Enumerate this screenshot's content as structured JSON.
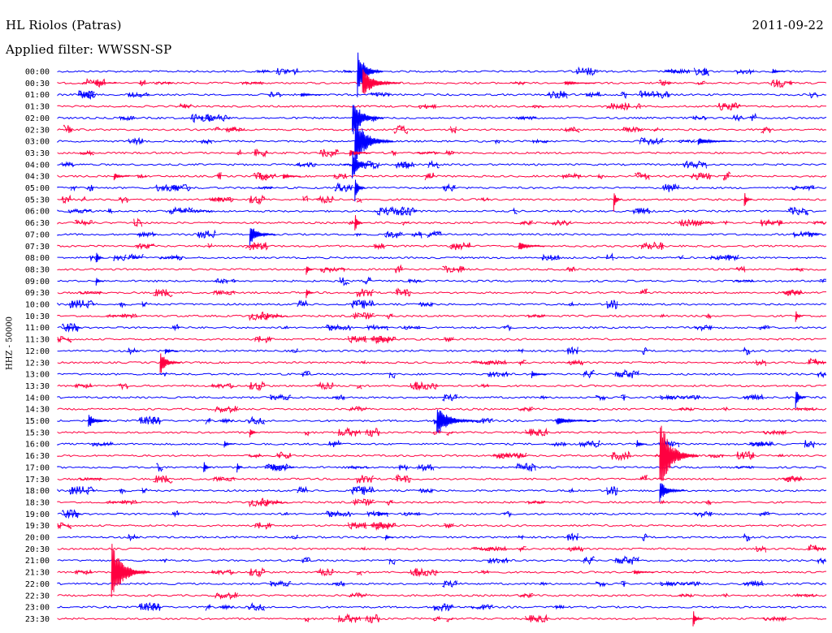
{
  "header": {
    "station": "HL Riolos (Patras)",
    "date": "2011-09-22",
    "filter": "Applied filter: WWSSN-SP"
  },
  "y_axis_label": "HHZ - 50000",
  "colors": {
    "even_row": "#0000ff",
    "odd_row": "#ff0040",
    "text": "#000000"
  },
  "chart_data": {
    "type": "line",
    "title": "HL Riolos (Patras)",
    "subtitle": "Applied filter: WWSSN-SP",
    "ylabel": "HHZ - 50000",
    "rows": [
      "00:00",
      "00:30",
      "01:00",
      "01:30",
      "02:00",
      "02:30",
      "03:00",
      "03:30",
      "04:00",
      "04:30",
      "05:00",
      "05:30",
      "06:00",
      "06:30",
      "07:00",
      "07:30",
      "08:00",
      "08:30",
      "09:00",
      "09:30",
      "10:00",
      "10:30",
      "11:00",
      "11:30",
      "12:00",
      "12:30",
      "13:00",
      "13:30",
      "14:00",
      "14:30",
      "15:00",
      "15:30",
      "16:00",
      "16:30",
      "17:00",
      "17:30",
      "18:00",
      "18:30",
      "19:00",
      "19:30",
      "20:00",
      "20:30",
      "21:00",
      "21:30",
      "22:00",
      "22:30",
      "23:00",
      "23:30"
    ],
    "row_minutes": 30,
    "color_cycle": [
      "blue",
      "red"
    ],
    "events": [
      {
        "row": 0,
        "minute": 11.7,
        "amplitude": 32,
        "duration_min": 1.0
      },
      {
        "row": 0,
        "minute": 27.9,
        "amplitude": 4,
        "duration_min": 0.5
      },
      {
        "row": 1,
        "minute": 11.9,
        "amplitude": 18,
        "duration_min": 1.5
      },
      {
        "row": 1,
        "minute": 1.5,
        "amplitude": 2,
        "duration_min": 0.8
      },
      {
        "row": 1,
        "minute": 19.8,
        "amplitude": 3,
        "duration_min": 1.2
      },
      {
        "row": 2,
        "minute": 9.5,
        "amplitude": 3,
        "duration_min": 0.8
      },
      {
        "row": 4,
        "minute": 11.5,
        "amplitude": 28,
        "duration_min": 1.2
      },
      {
        "row": 6,
        "minute": 11.6,
        "amplitude": 34,
        "duration_min": 1.5
      },
      {
        "row": 6,
        "minute": 25.0,
        "amplitude": 5,
        "duration_min": 1.4
      },
      {
        "row": 7,
        "minute": 11.4,
        "amplitude": 6,
        "duration_min": 0.8
      },
      {
        "row": 8,
        "minute": 11.5,
        "amplitude": 20,
        "duration_min": 0.8
      },
      {
        "row": 9,
        "minute": 2.2,
        "amplitude": 5,
        "duration_min": 0.6
      },
      {
        "row": 9,
        "minute": 8.8,
        "amplitude": 4,
        "duration_min": 0.7
      },
      {
        "row": 10,
        "minute": 11.6,
        "amplitude": 20,
        "duration_min": 0.4
      },
      {
        "row": 11,
        "minute": 21.7,
        "amplitude": 16,
        "duration_min": 0.3
      },
      {
        "row": 11,
        "minute": 26.8,
        "amplitude": 12,
        "duration_min": 0.3
      },
      {
        "row": 13,
        "minute": 11.6,
        "amplitude": 14,
        "duration_min": 0.3
      },
      {
        "row": 14,
        "minute": 7.5,
        "amplitude": 14,
        "duration_min": 1.0
      },
      {
        "row": 15,
        "minute": 18.0,
        "amplitude": 6,
        "duration_min": 1.0
      },
      {
        "row": 16,
        "minute": 1.5,
        "amplitude": 10,
        "duration_min": 0.3
      },
      {
        "row": 17,
        "minute": 9.7,
        "amplitude": 8,
        "duration_min": 0.3
      },
      {
        "row": 18,
        "minute": 1.5,
        "amplitude": 6,
        "duration_min": 0.3
      },
      {
        "row": 19,
        "minute": 9.7,
        "amplitude": 8,
        "duration_min": 0.3
      },
      {
        "row": 21,
        "minute": 28.8,
        "amplitude": 10,
        "duration_min": 0.3
      },
      {
        "row": 24,
        "minute": 4.2,
        "amplitude": 4,
        "duration_min": 0.5
      },
      {
        "row": 25,
        "minute": 4.0,
        "amplitude": 16,
        "duration_min": 0.8
      },
      {
        "row": 26,
        "minute": 18.5,
        "amplitude": 5,
        "duration_min": 0.6
      },
      {
        "row": 28,
        "minute": 28.8,
        "amplitude": 14,
        "duration_min": 0.4
      },
      {
        "row": 30,
        "minute": 1.2,
        "amplitude": 10,
        "duration_min": 0.8
      },
      {
        "row": 30,
        "minute": 14.8,
        "amplitude": 20,
        "duration_min": 1.6
      },
      {
        "row": 30,
        "minute": 19.5,
        "amplitude": 5,
        "duration_min": 1.6
      },
      {
        "row": 31,
        "minute": 7.5,
        "amplitude": 8,
        "duration_min": 0.3
      },
      {
        "row": 32,
        "minute": 6.5,
        "amplitude": 5,
        "duration_min": 0.4
      },
      {
        "row": 32,
        "minute": 22.6,
        "amplitude": 6,
        "duration_min": 0.4
      },
      {
        "row": 33,
        "minute": 23.5,
        "amplitude": 48,
        "duration_min": 1.5
      },
      {
        "row": 34,
        "minute": 5.7,
        "amplitude": 10,
        "duration_min": 0.3
      },
      {
        "row": 34,
        "minute": 7.0,
        "amplitude": 8,
        "duration_min": 0.2
      },
      {
        "row": 36,
        "minute": 23.5,
        "amplitude": 14,
        "duration_min": 1.0
      },
      {
        "row": 38,
        "minute": 12.5,
        "amplitude": 4,
        "duration_min": 0.4
      },
      {
        "row": 40,
        "minute": 12.8,
        "amplitude": 4,
        "duration_min": 0.3
      },
      {
        "row": 43,
        "minute": 2.1,
        "amplitude": 40,
        "duration_min": 1.5
      },
      {
        "row": 43,
        "minute": 22.5,
        "amplitude": 3,
        "duration_min": 0.8
      },
      {
        "row": 47,
        "minute": 24.8,
        "amplitude": 12,
        "duration_min": 0.4
      }
    ]
  }
}
